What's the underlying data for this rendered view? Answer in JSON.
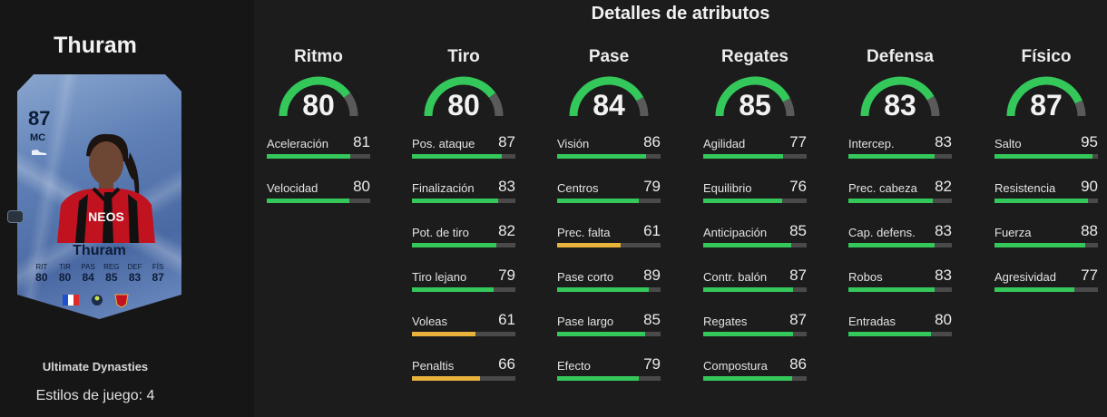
{
  "title": "Detalles de atributos",
  "player": {
    "name": "Thuram",
    "card": {
      "rating": "87",
      "position": "MC",
      "name": "Thuram",
      "stat_labels": [
        "RIT",
        "TIR",
        "PAS",
        "REG",
        "DEF",
        "FÍS"
      ],
      "stat_values": [
        "80",
        "80",
        "84",
        "85",
        "83",
        "87"
      ]
    },
    "promo": "Ultimate Dynasties",
    "styles": "Estilos de juego: 4"
  },
  "colors": {
    "high": "#34c75a",
    "mid": "#e9b23a",
    "track": "#4a4a4a"
  },
  "categories": [
    {
      "name": "Ritmo",
      "rating": 80,
      "attributes": [
        {
          "label": "Aceleración",
          "value": 81
        },
        {
          "label": "Velocidad",
          "value": 80
        }
      ]
    },
    {
      "name": "Tiro",
      "rating": 80,
      "attributes": [
        {
          "label": "Pos. ataque",
          "value": 87
        },
        {
          "label": "Finalización",
          "value": 83
        },
        {
          "label": "Pot. de tiro",
          "value": 82
        },
        {
          "label": "Tiro lejano",
          "value": 79
        },
        {
          "label": "Voleas",
          "value": 61
        },
        {
          "label": "Penaltis",
          "value": 66
        }
      ]
    },
    {
      "name": "Pase",
      "rating": 84,
      "attributes": [
        {
          "label": "Visión",
          "value": 86
        },
        {
          "label": "Centros",
          "value": 79
        },
        {
          "label": "Prec. falta",
          "value": 61
        },
        {
          "label": "Pase corto",
          "value": 89
        },
        {
          "label": "Pase largo",
          "value": 85
        },
        {
          "label": "Efecto",
          "value": 79
        }
      ]
    },
    {
      "name": "Regates",
      "rating": 85,
      "attributes": [
        {
          "label": "Agilidad",
          "value": 77
        },
        {
          "label": "Equilibrio",
          "value": 76
        },
        {
          "label": "Anticipación",
          "value": 85
        },
        {
          "label": "Contr. balón",
          "value": 87
        },
        {
          "label": "Regates",
          "value": 87
        },
        {
          "label": "Compostura",
          "value": 86
        }
      ]
    },
    {
      "name": "Defensa",
      "rating": 83,
      "attributes": [
        {
          "label": "Intercep.",
          "value": 83
        },
        {
          "label": "Prec. cabeza",
          "value": 82
        },
        {
          "label": "Cap. defens.",
          "value": 83
        },
        {
          "label": "Robos",
          "value": 83
        },
        {
          "label": "Entradas",
          "value": 80
        }
      ]
    },
    {
      "name": "Físico",
      "rating": 87,
      "attributes": [
        {
          "label": "Salto",
          "value": 95
        },
        {
          "label": "Resistencia",
          "value": 90
        },
        {
          "label": "Fuerza",
          "value": 88
        },
        {
          "label": "Agresividad",
          "value": 77
        }
      ]
    }
  ]
}
